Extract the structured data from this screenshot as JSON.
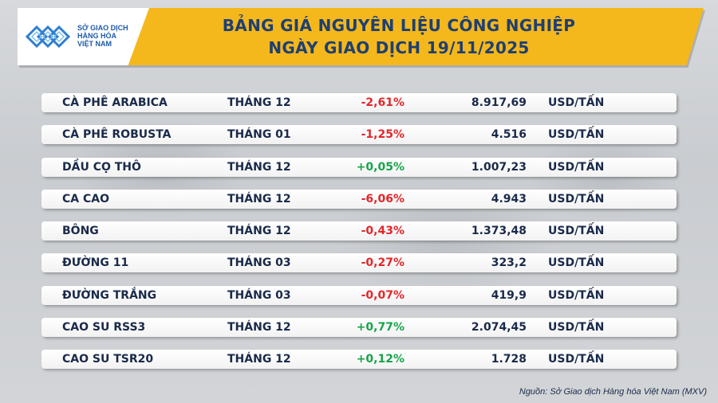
{
  "header": {
    "title_line1": "BẢNG GIÁ NGUYÊN LIỆU CÔNG NGHIỆP",
    "title_line2": "NGÀY GIAO DỊCH 19/11/2025",
    "logo_text_line1": "SỞ GIAO DỊCH",
    "logo_text_line2": "HÀNG HÓA",
    "logo_text_line3": "VIỆT NAM",
    "logo_color": "#1d5aa8",
    "accent_color": "#f4b81c"
  },
  "rows": [
    {
      "name": "CÀ PHÊ ARABICA",
      "month": "THÁNG 12",
      "change": "-2,61%",
      "trend": "neg",
      "price": "8.917,69",
      "unit": "USD/TẤN"
    },
    {
      "name": "CÀ PHÊ ROBUSTA",
      "month": "THÁNG 01",
      "change": "-1,25%",
      "trend": "neg",
      "price": "4.516",
      "unit": "USD/TẤN"
    },
    {
      "name": "DẦU CỌ THÔ",
      "month": "THÁNG 12",
      "change": "+0,05%",
      "trend": "pos",
      "price": "1.007,23",
      "unit": "USD/TẤN"
    },
    {
      "name": "CA CAO",
      "month": "THÁNG 12",
      "change": "-6,06%",
      "trend": "neg",
      "price": "4.943",
      "unit": "USD/TẤN"
    },
    {
      "name": "BÔNG",
      "month": "THÁNG 12",
      "change": "-0,43%",
      "trend": "neg",
      "price": "1.373,48",
      "unit": "USD/TẤN"
    },
    {
      "name": "ĐƯỜNG 11",
      "month": "THÁNG 03",
      "change": "-0,27%",
      "trend": "neg",
      "price": "323,2",
      "unit": "USD/TẤN"
    },
    {
      "name": "ĐƯỜNG TRẮNG",
      "month": "THÁNG 03",
      "change": "-0,07%",
      "trend": "neg",
      "price": "419,9",
      "unit": "USD/TẤN"
    },
    {
      "name": "CAO SU RSS3",
      "month": "THÁNG 12",
      "change": "+0,77%",
      "trend": "pos",
      "price": "2.074,45",
      "unit": "USD/TẤN"
    },
    {
      "name": "CAO SU TSR20",
      "month": "THÁNG 12",
      "change": "+0,12%",
      "trend": "pos",
      "price": "1.728",
      "unit": "USD/TẤN"
    }
  ],
  "colors": {
    "negative": "#e4262a",
    "positive": "#17a34a",
    "text": "#1a2a4a"
  },
  "footer": {
    "source": "Nguồn: Sở Giao dịch Hàng hóa Việt Nam (MXV)"
  }
}
